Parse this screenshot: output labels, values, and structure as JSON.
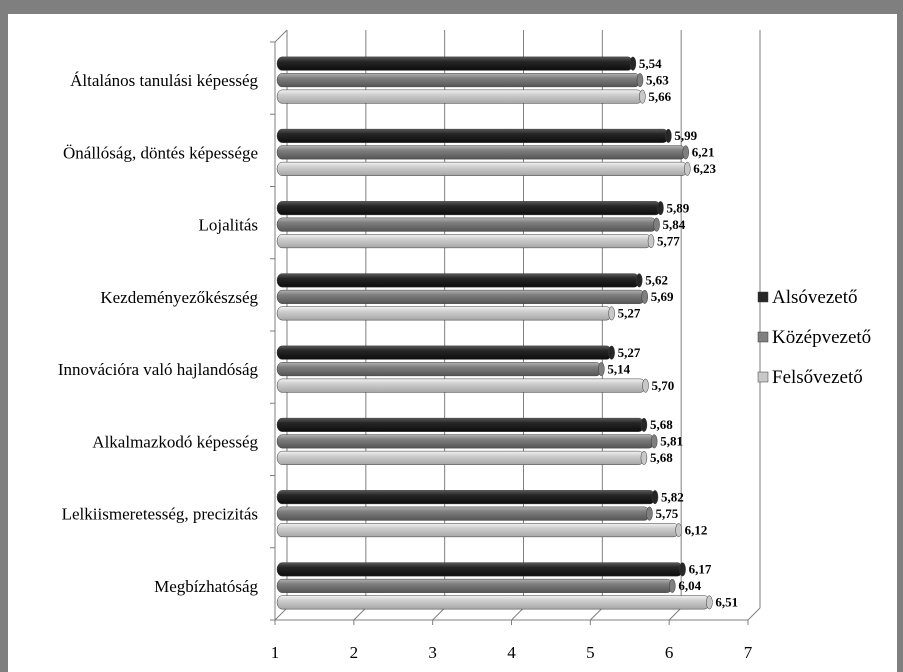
{
  "chart_data": {
    "type": "bar",
    "orientation": "horizontal",
    "categories": [
      "Általános tanulási képesség",
      "Önállóság, döntés képessége",
      "Lojalitás",
      "Kezdeményezőkészség",
      "Innovációra való hajlandóság",
      "Alkalmazkodó képesség",
      "Lelkiismeretesség, precizitás",
      "Megbízhatóság"
    ],
    "series": [
      {
        "name": "Alsóvezető",
        "color": "#262626",
        "values": [
          5.54,
          5.99,
          5.89,
          5.62,
          5.27,
          5.68,
          5.82,
          6.17
        ],
        "labels": [
          "5,54",
          "5,99",
          "5,89",
          "5,62",
          "5,27",
          "5,68",
          "5,82",
          "6,17"
        ]
      },
      {
        "name": "Középvezető",
        "color": "#7f7f7f",
        "values": [
          5.63,
          6.21,
          5.84,
          5.69,
          5.14,
          5.81,
          5.75,
          6.04
        ],
        "labels": [
          "5,63",
          "6,21",
          "5,84",
          "5,69",
          "5,14",
          "5,81",
          "5,75",
          "6,04"
        ]
      },
      {
        "name": "Felsővezető",
        "color": "#c8c8c8",
        "values": [
          5.66,
          6.23,
          5.77,
          5.27,
          5.7,
          5.68,
          6.12,
          6.51
        ],
        "labels": [
          "5,66",
          "6,23",
          "5,77",
          "5,27",
          "5,70",
          "5,68",
          "6,12",
          "6,51"
        ]
      }
    ],
    "xlim": [
      1,
      7
    ],
    "xticks": [
      "1",
      "2",
      "3",
      "4",
      "5",
      "6",
      "7"
    ],
    "grid": true,
    "legend": "right"
  }
}
